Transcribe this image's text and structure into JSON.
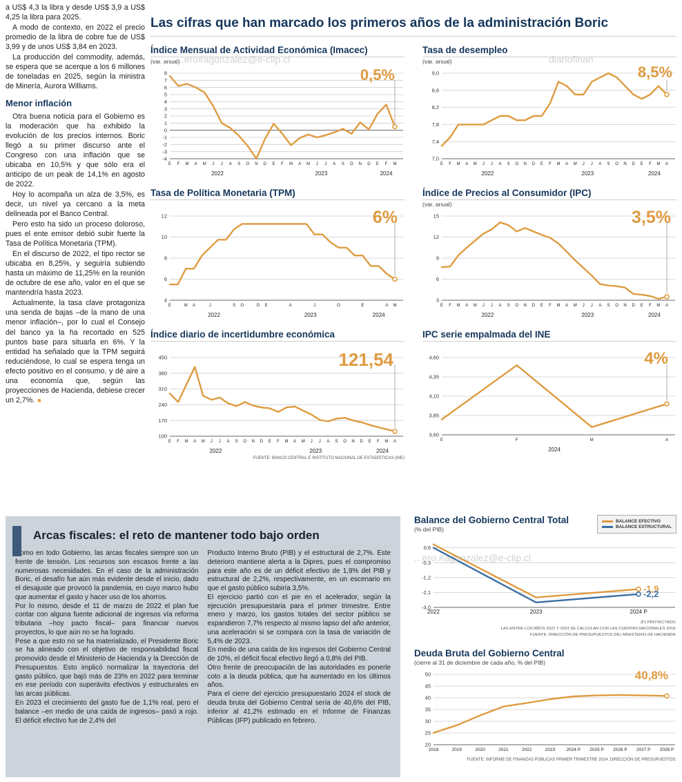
{
  "page": {
    "title": "Las cifras que han marcado los primeros años de la administración Boric",
    "watermarks": [
      {
        "text": "...ero#agonzalez@e-clip.cl"
      },
      {
        "text": "diariofinan"
      },
      {
        "text": "...ero.#agonzalez@e-clip.cl"
      }
    ]
  },
  "left_column": {
    "paragraphs_top": [
      "a US$ 4,3 la libra y desde US$ 3,9 a US$ 4,25 la libra para 2025.",
      "A modo de contexto, en 2022 el precio promedio de la libra de cobre fue de US$ 3,99 y de unos US$ 3,84 en 2023.",
      "La producción del commodity, además, se espera que se acerque a los 6 millones de toneladas en 2025, según la ministra de Minería, Aurora Williams."
    ],
    "subhead": "Menor inflación",
    "paragraphs_bottom": [
      "Otra buena noticia para el Gobierno es la moderación que ha exhibido la evolución de los precios internos. Boric llegó a su primer discurso ante el Congreso con una inflación que se ubicaba en 10,5% y que sólo era el anticipo de un peak de 14,1% en agosto de 2022.",
      "Hoy lo acompaña un alza de 3,5%, es decir, un nivel ya cercano a la meta delineada por el Banco Central.",
      "Pero esto ha sido un proceso doloroso, pues el ente emisor debió subir fuerte la Tasa de Política Monetaria (TPM).",
      "En el discurso de 2022, el tipo rector se ubicaba en 8,25%, y seguiría subiendo hasta un máximo de 11,25% en la reunión de octubre de ese año, valor en el que se mantendría hasta 2023.",
      "Actualmente, la tasa clave protagoniza una senda de bajas –de la mano de una menor inflación–, por lo cual el Consejo del banco ya la ha recortado en 525 puntos base para situarla en 6%. Y la entidad ha señalado que la TPM seguirá reduciéndose, lo cual se espera tenga un efecto positivo en el consumo, y dé aire a una economía que, según las proyecciones de Hacienda, debiese crecer un 2,7%."
    ]
  },
  "fiscal": {
    "title": "Arcas fiscales: el reto de mantener todo bajo orden",
    "col1_paragraphs": [
      "Como en todo Gobierno, las arcas fiscales siempre son un frente de tensión. Los recursos son escasos frente a las numerosas necesidades. En el caso de la administración Boric, el desafío fue aún más evidente desde el inicio, dado el desajuste que provocó la pandemia, en cuyo marco hubo que aumentar el gasto y hacer uso de los ahorros.",
      "Por lo mismo, desde el 11 de marzo de 2022 el plan fue contar con alguna fuente adicional de ingresos vía reforma tributaria –hoy pacto fiscal– para financiar nuevos proyectos, lo que aún no se ha logrado.",
      "Pese a que esto no se ha materializado, el Presidente Boric se ha alineado con el objetivo de responsabilidad fiscal promovido desde el Ministerio de Hacienda y la Dirección de Presupuestos. Esto implicó normalizar la trayectoria del gasto público, que bajó más de 23% en 2022 para terminar en ese período con superávits efectivos y estructurales en las arcas públicas.",
      "En 2023 el crecimiento del gasto fue de 1,1% real, pero el balance –en medio de una caída de ingresos– pasó a rojo. El déficit efectivo fue de 2,4% del"
    ],
    "col2_paragraphs": [
      "Producto Interno Bruto (PIB) y el estructural de 2,7%. Este deterioro mantiene alerta a la Dipres, pues el compromiso para este año es de un déficit efectivo de 1,9% del PIB y estructural de 2,2%, respectivamente, en un escenario en que el gasto público subiría 3,5%.",
      "El ejercicio partió con el pie en el acelerador, según la ejecución presupuestaria para el primer trimestre. Entre enero y marzo, los gastos totales del sector público se expandieron 7,7% respecto al mismo lapso del año anterior, una aceleración si se compara con la tasa de variación de 5,4% de 2023.",
      "En medio de una caída de los ingresos del Gobierno Central de 10%, el déficit fiscal efectivo llegó a 0,8% del PIB.",
      "Otro frente de preocupación de las autoridades es ponerle coto a la deuda pública, que ha aumentado en los últimos años.",
      "Para el cierre del ejercicio presupuestario 2024 el stock de deuda bruta del Gobierno Central sería de 40,6% del PIB, inferior al 41,2% estimado en el Informe de Finanzas Públicas (IFP) publicado en febrero."
    ]
  },
  "colors": {
    "accent_orange": "#DE9B3F",
    "line_blue": "#3C6FA3",
    "navy_title": "#15365B",
    "panel_bg": "#cdd3db"
  },
  "chart_data": [
    {
      "id": "imacec",
      "type": "line",
      "title": "Índice Mensual de Actividad Económica (Imacec)",
      "subtitle": "(var. anual)",
      "value_label": "0,5%",
      "color": "#DE9B3F",
      "ylim": [
        -4,
        8
      ],
      "y_ticks": [
        8,
        7,
        6,
        5,
        4,
        3,
        2,
        1,
        0,
        -1,
        -2,
        -3,
        -4
      ],
      "y_tick_labels": [
        "8",
        "7",
        "6",
        "5",
        "4",
        "3",
        "2",
        "1",
        "0",
        "-1",
        "-2",
        "-3",
        "-4"
      ],
      "zero_line": true,
      "guide": true,
      "x_labels": [
        "E",
        "F",
        "M",
        "A",
        "M",
        "J",
        "J",
        "A",
        "S",
        "O",
        "N",
        "D",
        "E",
        "F",
        "M",
        "A",
        "M",
        "J",
        "J",
        "A",
        "S",
        "O",
        "N",
        "D",
        "E",
        "F",
        "M"
      ],
      "year_labels": [
        {
          "text": "2022",
          "at": 5.5
        },
        {
          "text": "2023",
          "at": 17.5
        },
        {
          "text": "2024",
          "at": 25
        }
      ],
      "series": [
        {
          "name": "Imacec var. anual",
          "values": [
            7.6,
            6.2,
            6.5,
            6.0,
            5.3,
            3.4,
            1.0,
            0.3,
            -0.8,
            -2.2,
            -4.0,
            -1.2,
            0.9,
            -0.5,
            -2.1,
            -1.1,
            -0.6,
            -1.0,
            -0.7,
            -0.3,
            0.2,
            -0.5,
            1.1,
            0.1,
            2.3,
            3.6,
            0.5
          ]
        }
      ]
    },
    {
      "id": "desempleo",
      "type": "line",
      "title": "Tasa de desempleo",
      "subtitle": "(var. anual)",
      "value_label": "8,5%",
      "color": "#DE9B3F",
      "ylim": [
        7.0,
        9.0
      ],
      "y_ticks": [
        9.0,
        8.6,
        8.2,
        7.8,
        7.4,
        7.0
      ],
      "y_tick_labels": [
        "9,0",
        "8,6",
        "8,2",
        "7,8",
        "7,4",
        "7,0"
      ],
      "guide": true,
      "x_labels": [
        "E",
        "F",
        "M",
        "A",
        "M",
        "J",
        "J",
        "A",
        "S",
        "O",
        "N",
        "D",
        "E",
        "F",
        "M",
        "A",
        "M",
        "J",
        "J",
        "A",
        "S",
        "O",
        "N",
        "D",
        "E",
        "F",
        "M",
        "A"
      ],
      "year_labels": [
        {
          "text": "2022",
          "at": 5.5
        },
        {
          "text": "2023",
          "at": 17.5
        },
        {
          "text": "2024",
          "at": 25.5
        }
      ],
      "series": [
        {
          "name": "Tasa de desempleo",
          "values": [
            7.3,
            7.5,
            7.8,
            7.8,
            7.8,
            7.8,
            7.9,
            8.0,
            8.0,
            7.9,
            7.9,
            8.0,
            8.0,
            8.3,
            8.8,
            8.7,
            8.5,
            8.5,
            8.8,
            8.9,
            9.0,
            8.9,
            8.7,
            8.5,
            8.4,
            8.5,
            8.7,
            8.5
          ]
        }
      ]
    },
    {
      "id": "tpm",
      "type": "line",
      "title": "Tasa de Política Monetaria (TPM)",
      "subtitle": "",
      "value_label": "6%",
      "color": "#DE9B3F",
      "ylim": [
        4,
        12
      ],
      "y_ticks": [
        12,
        10,
        8,
        6,
        4
      ],
      "y_tick_labels": [
        "12",
        "10",
        "8",
        "6",
        "4"
      ],
      "guide": true,
      "x_labels": [
        "E",
        "",
        "M",
        "A",
        "",
        "J",
        "",
        "",
        "S",
        "O",
        "",
        "D",
        "E",
        "",
        "",
        "A",
        "",
        "",
        "J",
        "",
        "",
        "O",
        "",
        "",
        "E",
        "",
        "",
        "A",
        "M"
      ],
      "year_labels": [
        {
          "text": "2022",
          "at": 5.5
        },
        {
          "text": "2023",
          "at": 17.5
        },
        {
          "text": "2024",
          "at": 26
        }
      ],
      "series": [
        {
          "name": "TPM",
          "values": [
            5.5,
            5.5,
            7.0,
            7.0,
            8.25,
            9.0,
            9.75,
            9.75,
            10.75,
            11.25,
            11.25,
            11.25,
            11.25,
            11.25,
            11.25,
            11.25,
            11.25,
            11.25,
            10.25,
            10.25,
            9.5,
            9.0,
            9.0,
            8.25,
            8.25,
            7.25,
            7.25,
            6.5,
            6.0
          ]
        }
      ]
    },
    {
      "id": "ipc",
      "type": "line",
      "title": "Índice de Precios al Consumidor (IPC)",
      "subtitle": "(var. anual)",
      "value_label": "3,5%",
      "color": "#DE9B3F",
      "ylim": [
        3,
        15
      ],
      "y_ticks": [
        15,
        12,
        9,
        6,
        3
      ],
      "y_tick_labels": [
        "15",
        "12",
        "9",
        "6",
        "3"
      ],
      "guide": true,
      "x_labels": [
        "E",
        "F",
        "M",
        "A",
        "M",
        "J",
        "J",
        "A",
        "S",
        "O",
        "N",
        "D",
        "E",
        "F",
        "M",
        "A",
        "M",
        "J",
        "J",
        "A",
        "S",
        "O",
        "N",
        "D",
        "E",
        "F",
        "M",
        "A"
      ],
      "year_labels": [
        {
          "text": "2022",
          "at": 5.5
        },
        {
          "text": "2023",
          "at": 17.5
        },
        {
          "text": "2024",
          "at": 25.5
        }
      ],
      "series": [
        {
          "name": "IPC var. anual",
          "values": [
            7.7,
            7.8,
            9.4,
            10.5,
            11.5,
            12.5,
            13.1,
            14.1,
            13.7,
            12.8,
            13.3,
            12.8,
            12.3,
            11.9,
            11.1,
            9.9,
            8.7,
            7.6,
            6.5,
            5.3,
            5.1,
            5.0,
            4.8,
            3.9,
            3.8,
            3.6,
            3.2,
            3.5
          ]
        }
      ]
    },
    {
      "id": "incertidumbre",
      "type": "line",
      "title": "Índice diario de incertidumbre económica",
      "subtitle": "",
      "value_label": "121,54",
      "color": "#DE9B3F",
      "ylim": [
        100,
        450
      ],
      "y_ticks": [
        450,
        380,
        310,
        240,
        170,
        100
      ],
      "y_tick_labels": [
        "450",
        "380",
        "310",
        "240",
        "170",
        "100"
      ],
      "guide": true,
      "x_labels": [
        "E",
        "F",
        "M",
        "A",
        "M",
        "J",
        "J",
        "A",
        "S",
        "O",
        "N",
        "D",
        "E",
        "F",
        "M",
        "A",
        "M",
        "J",
        "J",
        "A",
        "S",
        "O",
        "N",
        "D",
        "E",
        "F",
        "M",
        "A"
      ],
      "year_labels": [
        {
          "text": "2022",
          "at": 5.5
        },
        {
          "text": "2023",
          "at": 17.5
        },
        {
          "text": "2024",
          "at": 25.5
        }
      ],
      "source": "FUENTE: BANCO CENTRAL E INSTITUTO NACIONAL DE ESTADÍSTICAS (INE)",
      "series": [
        {
          "name": "Incertidumbre económica",
          "values": [
            290,
            252,
            330,
            408,
            280,
            262,
            272,
            246,
            234,
            252,
            236,
            228,
            224,
            208,
            228,
            232,
            214,
            196,
            172,
            166,
            178,
            182,
            170,
            162,
            150,
            140,
            131,
            121.54
          ]
        }
      ]
    },
    {
      "id": "ipc_empalmada",
      "type": "line",
      "title": "IPC serie empalmada del INE",
      "subtitle": "",
      "value_label": "4%",
      "color": "#DE9B3F",
      "ylim": [
        3.6,
        4.6
      ],
      "y_ticks": [
        4.6,
        4.35,
        4.1,
        3.85,
        3.6
      ],
      "y_tick_labels": [
        "4,60",
        "4,35",
        "4,10",
        "3,85",
        "3,60"
      ],
      "guide": true,
      "x_labels": [
        "E",
        "F",
        "M",
        "A"
      ],
      "year_labels": [
        {
          "text": "2024",
          "at": 1.5
        }
      ],
      "series": [
        {
          "name": "IPC serie empalmada",
          "values": [
            3.8,
            4.5,
            3.7,
            4.0
          ]
        }
      ]
    },
    {
      "id": "balance_gobierno_central",
      "type": "line",
      "title": "Balance del Gobierno Central Total",
      "subtitle": "(% del PIB)",
      "ylim": [
        -3.0,
        1.0
      ],
      "y_ticks": [
        0.6,
        -0.3,
        -1.2,
        -2.1,
        -3.0
      ],
      "y_tick_labels": [
        "0,6",
        "-0,3",
        "-1,2",
        "-2,1",
        "-3,0"
      ],
      "pad_right": 55,
      "pad_bottom": 16,
      "x_label_size": 8,
      "x_labels": [
        "2022",
        "2023",
        "2024 P"
      ],
      "series": [
        {
          "name": "Balance Efectivo",
          "legend": "BALANCE EFECTIVO",
          "color": "#DE9B3F",
          "values": [
            0.8,
            -2.4,
            -1.9
          ],
          "end_label": "-1,9"
        },
        {
          "name": "Balance Estructural",
          "legend": "BALANCE ESTRUCTURAL",
          "color": "#3C6FA3",
          "values": [
            0.6,
            -2.7,
            -2.2
          ],
          "end_label": "-2,2"
        }
      ],
      "footnotes": [
        "(P) PROYECTADO.",
        "LAS ENTRE LOS AÑOS 2021 Y 2023 SE CALCULAN CON LAS CUENTAS NACIONALES 2018.",
        "FUENTE: DIRECCIÓN DE PRESUPUESTOS DEL MINISTERIO DE HACIENDA."
      ]
    },
    {
      "id": "deuda_bruta",
      "type": "line",
      "title": "Deuda Bruta del Gobierno Central",
      "subtitle": "(cierre al 31 de diciembre de cada año, % del PIB)",
      "value_label": "40,8%",
      "color": "#DE9B3F",
      "ylim": [
        20,
        50
      ],
      "y_ticks": [
        50,
        45,
        40,
        35,
        30,
        25,
        20
      ],
      "y_tick_labels": [
        "50",
        "45",
        "40",
        "35",
        "30",
        "25",
        "20"
      ],
      "pad_bottom": 16,
      "x_label_size": 6.5,
      "x_labels": [
        "2018",
        "2019",
        "2020",
        "2021",
        "2022",
        "2023",
        "2024 P",
        "2025 P",
        "2026 P",
        "2027 P",
        "2028 P"
      ],
      "source": "FUENTE: INFORME DE FINANZAS PÚBLICAS PRIMER TRIMESTRE 2024, DIRECCIÓN DE PRESUPUESTOS.",
      "series": [
        {
          "name": "Deuda bruta",
          "values": [
            25.1,
            28.3,
            32.5,
            36.3,
            37.8,
            39.4,
            40.6,
            41.0,
            41.2,
            41.0,
            40.8
          ]
        }
      ]
    }
  ]
}
